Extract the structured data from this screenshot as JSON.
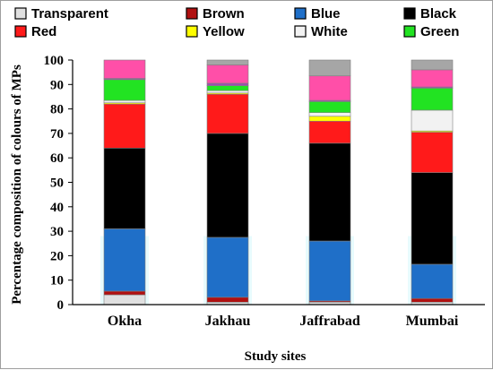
{
  "chart_data": {
    "type": "bar",
    "stacked": true,
    "title": "",
    "xlabel": "Study sites",
    "ylabel": "Percentage composition of colours of MPs",
    "categories": [
      "Okha",
      "Jakhau",
      "Jaffrabad",
      "Mumbai"
    ],
    "ylim": [
      0,
      100
    ],
    "yticks": [
      0,
      10,
      20,
      30,
      40,
      50,
      60,
      70,
      80,
      90,
      100
    ],
    "legend_position": "top",
    "series": [
      {
        "name": "Transparent",
        "color": "#e0e0e0",
        "values": [
          4,
          1,
          1,
          1
        ]
      },
      {
        "name": "Brown",
        "color": "#b01010",
        "values": [
          1.5,
          2,
          0.5,
          1.5
        ]
      },
      {
        "name": "Blue",
        "color": "#1f6fc8",
        "values": [
          25.5,
          24.5,
          24.5,
          14
        ]
      },
      {
        "name": "Black",
        "color": "#000000",
        "values": [
          33,
          42.5,
          40,
          37.5
        ]
      },
      {
        "name": "Red",
        "color": "#ff1a1a",
        "values": [
          18,
          16,
          9,
          16.5
        ]
      },
      {
        "name": "Yellow",
        "color": "#ffff00",
        "values": [
          0.5,
          0.5,
          2,
          0.5
        ]
      },
      {
        "name": "White",
        "color": "#f2f2f2",
        "values": [
          1,
          1,
          1.5,
          8.5
        ]
      },
      {
        "name": "Green",
        "color": "#22e322",
        "values": [
          8.5,
          2,
          4.5,
          9
        ]
      },
      {
        "name": "",
        "color": "#9b4fb0",
        "values": [
          0.5,
          1,
          0.5,
          0.5
        ]
      },
      {
        "name": "",
        "color": "#ff4fa8",
        "values": [
          7.5,
          7.5,
          10,
          7
        ]
      },
      {
        "name": "",
        "color": "#a6a6a6",
        "values": [
          0,
          2,
          6.5,
          4
        ]
      }
    ]
  }
}
